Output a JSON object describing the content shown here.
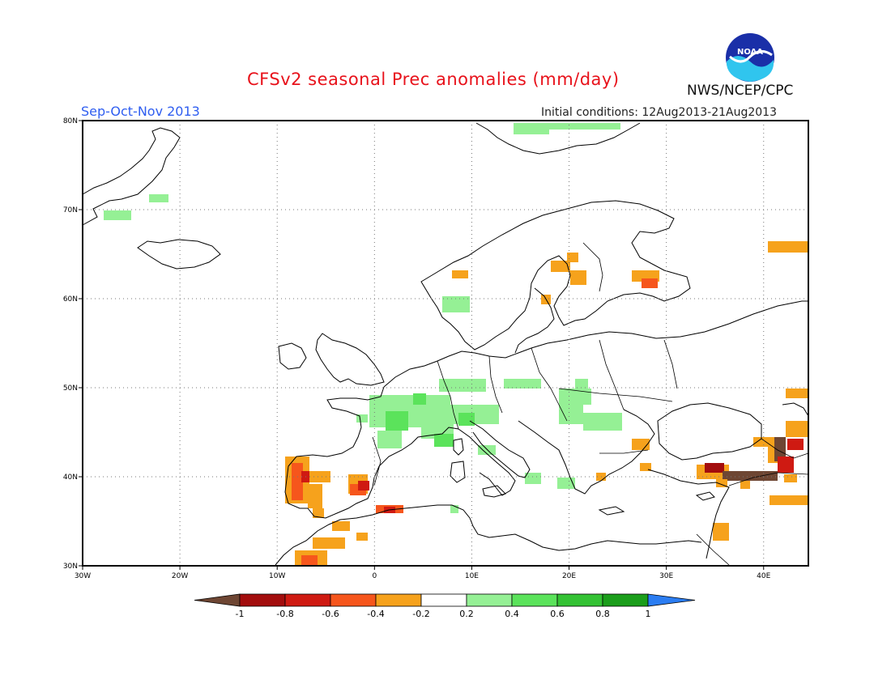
{
  "header": {
    "title": "CFSv2 seasonal Prec anomalies (mm/day)",
    "season": "Sep-Oct-Nov 2013",
    "initial_conditions": "Initial conditions: 12Aug2013-21Aug2013",
    "agency": "NWS/NCEP/CPC",
    "logo_text": "NOAA"
  },
  "map": {
    "lon_labels": [
      "30W",
      "20W",
      "10W",
      "0",
      "10E",
      "20E",
      "30E",
      "40E"
    ],
    "lat_labels": [
      "30N",
      "40N",
      "50N",
      "60N",
      "70N",
      "80N"
    ]
  },
  "colorbar": {
    "tick_labels": [
      "-1",
      "-0.8",
      "-0.6",
      "-0.4",
      "-0.2",
      "0.2",
      "0.4",
      "0.6",
      "0.8",
      "1"
    ],
    "colors": [
      "#6e4633",
      "#a30d0d",
      "#cf1a12",
      "#f6561c",
      "#f6a21c",
      "#ffffff",
      "#95f095",
      "#5be35b",
      "#34c234",
      "#1b9e1b",
      "#2b7df2"
    ]
  }
}
